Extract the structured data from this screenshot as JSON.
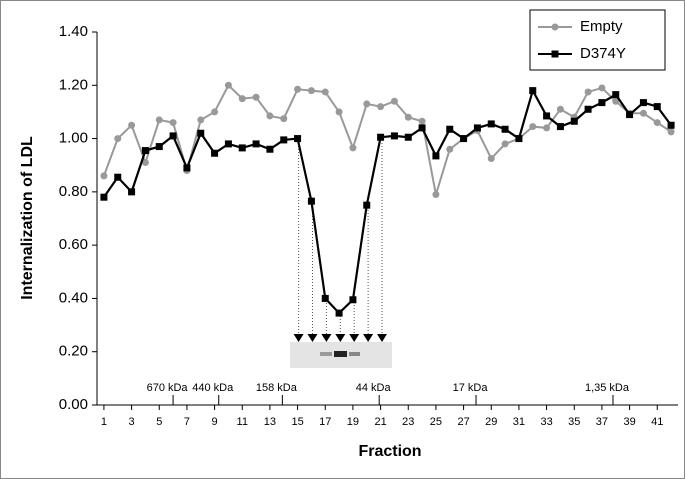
{
  "chart_data": {
    "type": "line",
    "x_label": "Fraction",
    "y_label": "Internalization of LDL",
    "x": [
      1,
      2,
      3,
      4,
      5,
      6,
      7,
      8,
      9,
      10,
      11,
      12,
      13,
      14,
      15,
      16,
      17,
      18,
      19,
      20,
      21,
      22,
      23,
      24,
      25,
      26,
      27,
      28,
      29,
      30,
      31,
      32,
      33,
      34,
      35,
      36,
      37,
      38,
      39,
      40,
      41,
      42
    ],
    "series": [
      {
        "name": "Empty",
        "color": "#999999",
        "marker": "circle",
        "values": [
          0.86,
          1.0,
          1.05,
          0.91,
          1.07,
          1.06,
          0.88,
          1.07,
          1.1,
          1.2,
          1.15,
          1.155,
          1.085,
          1.075,
          1.185,
          1.18,
          1.175,
          1.1,
          0.965,
          1.13,
          1.12,
          1.14,
          1.08,
          1.065,
          0.79,
          0.96,
          1.0,
          1.03,
          0.925,
          0.98,
          1.0,
          1.045,
          1.04,
          1.11,
          1.08,
          1.175,
          1.19,
          1.14,
          1.095,
          1.095,
          1.06,
          1.025
        ]
      },
      {
        "name": "D374Y",
        "color": "#000000",
        "marker": "square",
        "values": [
          0.78,
          0.855,
          0.8,
          0.955,
          0.97,
          1.01,
          0.89,
          1.02,
          0.945,
          0.98,
          0.965,
          0.98,
          0.96,
          0.995,
          1.0,
          0.765,
          0.4,
          0.345,
          0.395,
          0.75,
          1.005,
          1.01,
          1.005,
          1.04,
          0.935,
          1.035,
          1.0,
          1.04,
          1.055,
          1.035,
          1.0,
          1.18,
          1.085,
          1.045,
          1.065,
          1.11,
          1.135,
          1.165,
          1.09,
          1.135,
          1.12,
          1.05
        ]
      }
    ],
    "xlim": [
      0.5,
      42.5
    ],
    "xticks": [
      1,
      3,
      5,
      7,
      9,
      11,
      13,
      15,
      17,
      19,
      21,
      23,
      25,
      27,
      29,
      31,
      33,
      35,
      37,
      39,
      41
    ],
    "ylim": [
      0,
      1.4
    ],
    "yticks": [
      {
        "value": 0,
        "label": "0.00"
      },
      {
        "value": 0.2,
        "label": "0.20"
      },
      {
        "value": 0.4,
        "label": "0.40"
      },
      {
        "value": 0.6,
        "label": "0.60"
      },
      {
        "value": 0.8,
        "label": "0.80"
      },
      {
        "value": 1,
        "label": "1.00"
      },
      {
        "value": 1.2,
        "label": "1.20"
      },
      {
        "value": 1.4,
        "label": "1.40"
      }
    ],
    "annotations": [
      {
        "text": "670 kDa",
        "x": 6
      },
      {
        "text": "440 kDa",
        "x": 9.3
      },
      {
        "text": "158 kDa",
        "x": 13.9
      },
      {
        "text": "44 kDa",
        "x": 20.9
      },
      {
        "text": "17 kDa",
        "x": 27.9
      },
      {
        "text": "1,35 kDa",
        "x": 37.8
      }
    ],
    "legend": "upper right"
  }
}
